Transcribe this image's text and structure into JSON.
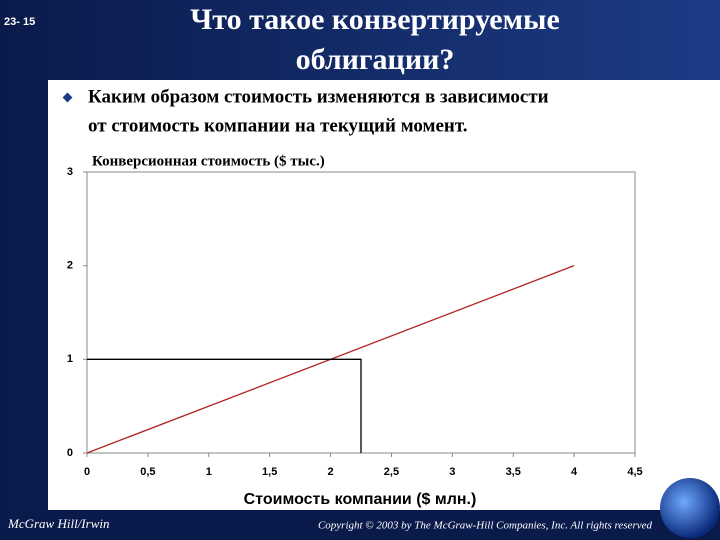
{
  "slide": {
    "number": "23- 15",
    "title": [
      "Что такое конвертируемые",
      "облигации?"
    ],
    "bullet": [
      "Каким образом стоимость изменяются в зависимости",
      "от стоимость компании на текущий момент."
    ],
    "footer_left": "McGraw Hill/Irwin",
    "footer_right": "Copyright © 2003 by The McGraw-Hill Companies, Inc. All rights reserved"
  },
  "chart_data": {
    "type": "line",
    "title": "Конверсионная стоимость ($ тыс.)",
    "xlabel": "Стоимость компании ($ млн.)",
    "xlim": [
      0,
      4.5
    ],
    "ylim": [
      0,
      3
    ],
    "xticks": [
      0,
      {
        "value": 0.5,
        "label": "0,5"
      },
      1,
      {
        "value": 1.5,
        "label": "1,5"
      },
      2,
      {
        "value": 2.5,
        "label": "2,5"
      },
      3,
      {
        "value": 3.5,
        "label": "3,5"
      },
      4,
      {
        "value": 4.5,
        "label": "4,5"
      }
    ],
    "yticks": [
      0,
      1,
      2,
      3
    ],
    "series": [
      {
        "color": "#b22222",
        "x": [
          0,
          4
        ],
        "values": [
          0,
          2
        ]
      },
      {
        "color": "#000000",
        "x": [
          0,
          2.25,
          2.25
        ],
        "values": [
          1,
          1,
          0
        ]
      }
    ]
  }
}
